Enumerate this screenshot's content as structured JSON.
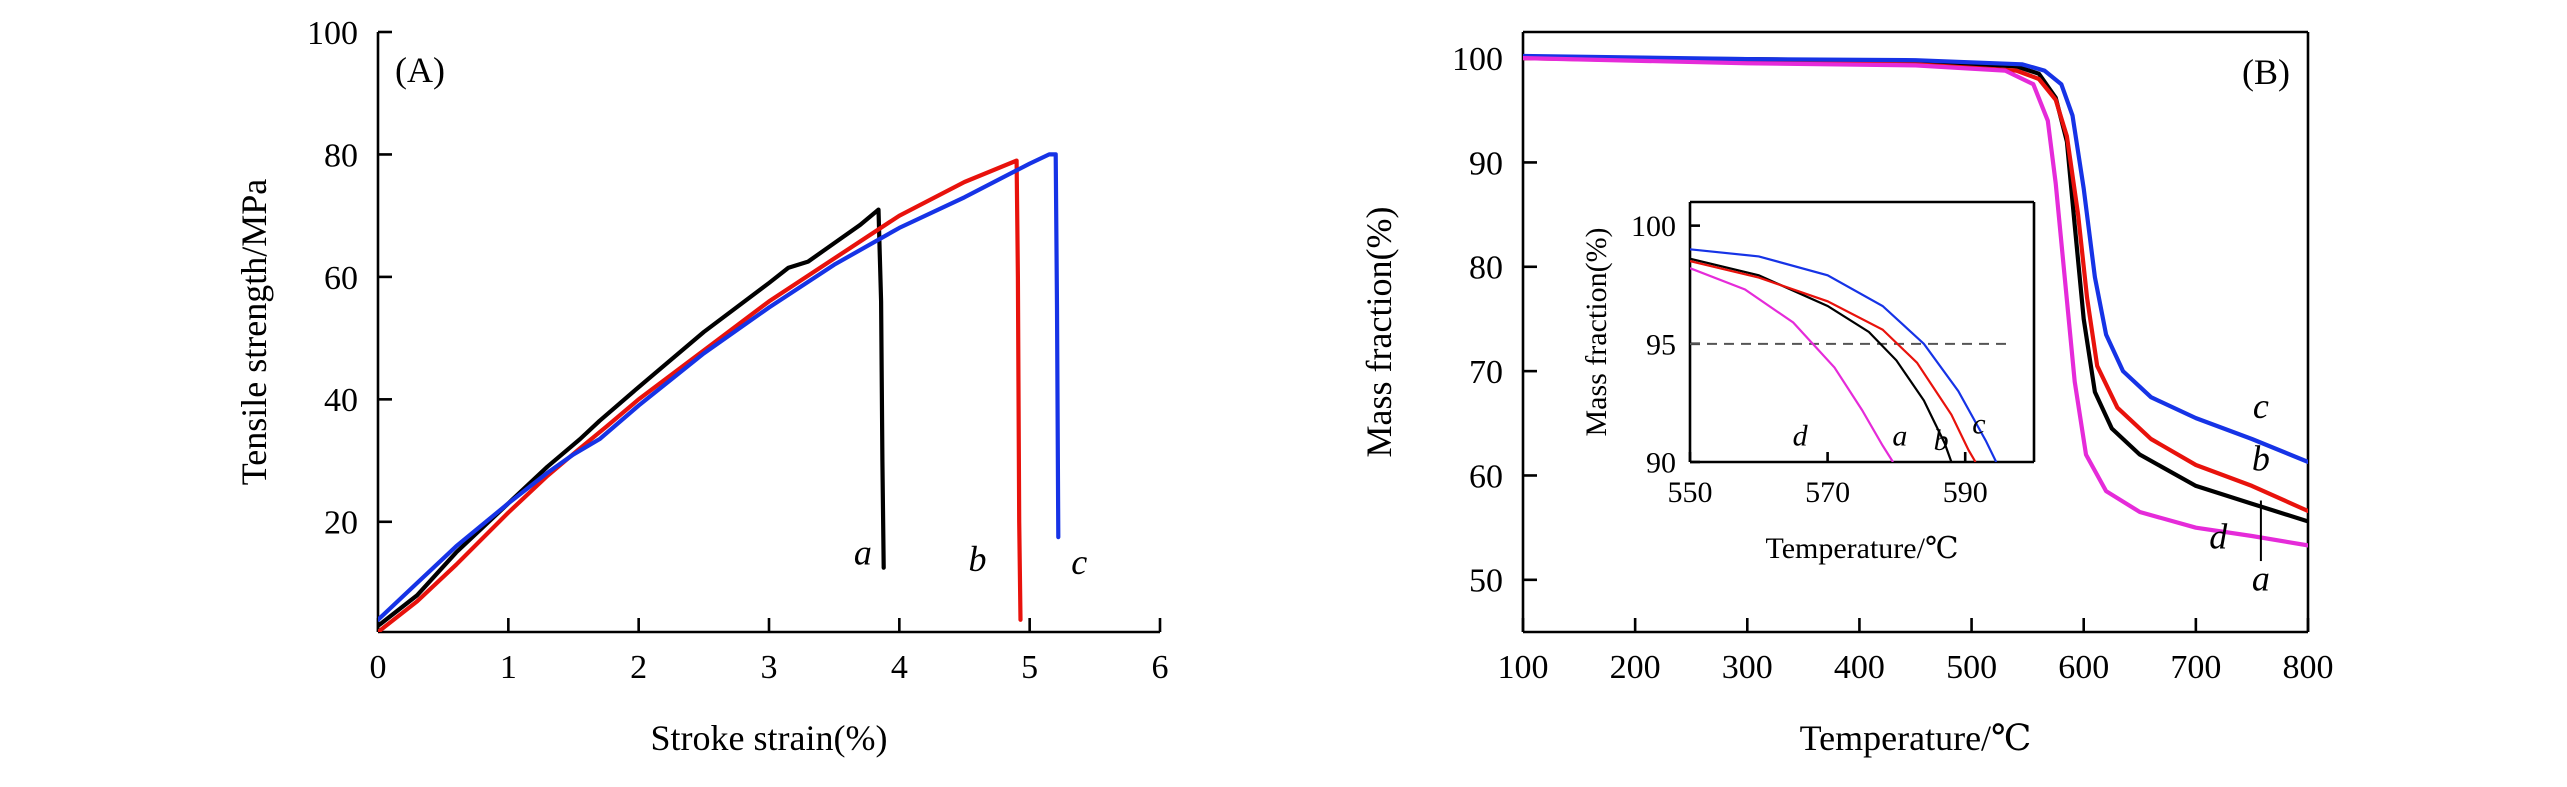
{
  "chart_data": [
    {
      "id": "A",
      "type": "line",
      "panel_label": "(A)",
      "xlabel": "Stroke strain(%)",
      "ylabel": "Tensile strength/MPa",
      "xlim": [
        0,
        6
      ],
      "ylim": [
        2,
        100
      ],
      "x_ticks": [
        0,
        1,
        2,
        3,
        4,
        5,
        6
      ],
      "y_ticks": [
        20,
        40,
        60,
        80,
        100
      ],
      "series": [
        {
          "name": "a",
          "color": "#000000",
          "points": [
            [
              0,
              3
            ],
            [
              0.3,
              8
            ],
            [
              0.6,
              15
            ],
            [
              1.0,
              23
            ],
            [
              1.3,
              29
            ],
            [
              1.55,
              33.5
            ],
            [
              1.7,
              36.5
            ],
            [
              2.0,
              42
            ],
            [
              2.5,
              51
            ],
            [
              3.0,
              59
            ],
            [
              3.15,
              61.5
            ],
            [
              3.3,
              62.5
            ],
            [
              3.5,
              65.5
            ],
            [
              3.7,
              68.5
            ],
            [
              3.84,
              71
            ],
            [
              3.86,
              56
            ],
            [
              3.87,
              30
            ],
            [
              3.88,
              12.5
            ]
          ],
          "label": "a",
          "label_pos": [
            3.72,
            13
          ]
        },
        {
          "name": "b",
          "color": "#e8120c",
          "points": [
            [
              0,
              2
            ],
            [
              0.3,
              7
            ],
            [
              0.6,
              13
            ],
            [
              1.0,
              21.5
            ],
            [
              1.3,
              27.5
            ],
            [
              1.55,
              32
            ],
            [
              1.75,
              35.5
            ],
            [
              2.0,
              40
            ],
            [
              2.5,
              48
            ],
            [
              3.0,
              56
            ],
            [
              3.5,
              63
            ],
            [
              4.0,
              70
            ],
            [
              4.5,
              75.5
            ],
            [
              4.9,
              79
            ],
            [
              4.91,
              60
            ],
            [
              4.92,
              20
            ],
            [
              4.93,
              4
            ]
          ],
          "label": "b",
          "label_pos": [
            4.6,
            12
          ]
        },
        {
          "name": "c",
          "color": "#1633e6",
          "points": [
            [
              0,
              4
            ],
            [
              0.3,
              10
            ],
            [
              0.6,
              16
            ],
            [
              1.0,
              23
            ],
            [
              1.3,
              28
            ],
            [
              1.5,
              31
            ],
            [
              1.7,
              33.5
            ],
            [
              2.0,
              39
            ],
            [
              2.5,
              47.5
            ],
            [
              3.0,
              55
            ],
            [
              3.5,
              62
            ],
            [
              4.0,
              68
            ],
            [
              4.5,
              73
            ],
            [
              5.0,
              78.5
            ],
            [
              5.15,
              80
            ],
            [
              5.2,
              80
            ],
            [
              5.21,
              55
            ],
            [
              5.22,
              17.5
            ]
          ],
          "label": "c",
          "label_pos": [
            5.38,
            11.5
          ]
        }
      ]
    },
    {
      "id": "B",
      "type": "line",
      "panel_label": "(B)",
      "xlabel": "Temperature/℃",
      "ylabel": "Mass fraction(%)",
      "xlim": [
        100,
        800
      ],
      "ylim": [
        45,
        102.5
      ],
      "x_ticks": [
        100,
        200,
        300,
        400,
        500,
        600,
        700,
        800
      ],
      "y_ticks": [
        50,
        60,
        70,
        80,
        90,
        100
      ],
      "series": [
        {
          "name": "a",
          "color": "#000000",
          "points": [
            [
              100,
              100
            ],
            [
              300,
              99.9
            ],
            [
              450,
              99.7
            ],
            [
              540,
              99.2
            ],
            [
              560,
              98.5
            ],
            [
              575,
              96.2
            ],
            [
              585,
              92
            ],
            [
              592,
              84
            ],
            [
              600,
              75
            ],
            [
              610,
              68
            ],
            [
              625,
              64.5
            ],
            [
              650,
              62
            ],
            [
              700,
              59
            ],
            [
              750,
              57.3
            ],
            [
              800,
              55.6
            ]
          ],
          "label": "a",
          "label_pos": [
            758,
            49
          ]
        },
        {
          "name": "b",
          "color": "#e8120c",
          "points": [
            [
              100,
              100
            ],
            [
              300,
              99.6
            ],
            [
              450,
              99.4
            ],
            [
              540,
              98.8
            ],
            [
              560,
              98
            ],
            [
              575,
              96
            ],
            [
              585,
              92.5
            ],
            [
              595,
              85
            ],
            [
              603,
              77
            ],
            [
              612,
              70.5
            ],
            [
              630,
              66.5
            ],
            [
              660,
              63.5
            ],
            [
              700,
              61
            ],
            [
              750,
              59
            ],
            [
              800,
              56.6
            ]
          ],
          "label": "b",
          "label_pos": [
            758,
            60.5
          ]
        },
        {
          "name": "c",
          "color": "#1633e6",
          "points": [
            [
              100,
              100.2
            ],
            [
              300,
              99.9
            ],
            [
              450,
              99.8
            ],
            [
              545,
              99.4
            ],
            [
              565,
              98.8
            ],
            [
              580,
              97.5
            ],
            [
              590,
              94.5
            ],
            [
              600,
              87.5
            ],
            [
              610,
              79
            ],
            [
              620,
              73.5
            ],
            [
              635,
              70
            ],
            [
              660,
              67.5
            ],
            [
              700,
              65.5
            ],
            [
              750,
              63.5
            ],
            [
              800,
              61.3
            ]
          ],
          "label": "c",
          "label_pos": [
            758,
            65.5
          ]
        },
        {
          "name": "d",
          "color": "#e52bd9",
          "points": [
            [
              100,
              100
            ],
            [
              300,
              99.5
            ],
            [
              450,
              99.3
            ],
            [
              530,
              98.8
            ],
            [
              555,
              97.5
            ],
            [
              568,
              94
            ],
            [
              575,
              88
            ],
            [
              583,
              79
            ],
            [
              592,
              69
            ],
            [
              602,
              62
            ],
            [
              620,
              58.5
            ],
            [
              650,
              56.5
            ],
            [
              700,
              55
            ],
            [
              750,
              54.2
            ],
            [
              800,
              53.3
            ]
          ],
          "label": "d",
          "label_pos": [
            720,
            53
          ]
        }
      ],
      "inset": {
        "xlabel": "Temperature/℃",
        "ylabel": "Mass fraction(%)",
        "xlim": [
          550,
          600
        ],
        "ylim": [
          90,
          101
        ],
        "x_ticks": [
          550,
          570,
          590
        ],
        "y_ticks": [
          90,
          95,
          100
        ],
        "reference_line": 95,
        "series": [
          {
            "name": "a",
            "color": "#000000",
            "points": [
              [
                550,
                98.6
              ],
              [
                560,
                97.9
              ],
              [
                570,
                96.6
              ],
              [
                576,
                95.5
              ],
              [
                580,
                94.3
              ],
              [
                584,
                92.6
              ],
              [
                587,
                90.8
              ],
              [
                588,
                90
              ]
            ],
            "label": "a",
            "label_pos": [
              580.5,
              90.7
            ]
          },
          {
            "name": "b",
            "color": "#e8120c",
            "points": [
              [
                550,
                98.5
              ],
              [
                560,
                97.8
              ],
              [
                570,
                96.8
              ],
              [
                578,
                95.6
              ],
              [
                583,
                94.2
              ],
              [
                588,
                92
              ],
              [
                590.5,
                90.5
              ],
              [
                591.5,
                90
              ]
            ],
            "label": "b",
            "label_pos": [
              586.5,
              90.5
            ]
          },
          {
            "name": "c",
            "color": "#1633e6",
            "points": [
              [
                550,
                99
              ],
              [
                560,
                98.7
              ],
              [
                570,
                97.9
              ],
              [
                578,
                96.6
              ],
              [
                584,
                95
              ],
              [
                589,
                93
              ],
              [
                593,
                90.9
              ],
              [
                594.5,
                90
              ]
            ],
            "label": "c",
            "label_pos": [
              592,
              91.2
            ]
          },
          {
            "name": "d",
            "color": "#e52bd9",
            "points": [
              [
                550,
                98.2
              ],
              [
                558,
                97.3
              ],
              [
                565,
                95.9
              ],
              [
                571,
                94
              ],
              [
                575,
                92.2
              ],
              [
                578,
                90.7
              ],
              [
                579.5,
                90
              ]
            ],
            "label": "d",
            "label_pos": [
              566,
              90.7
            ]
          }
        ]
      }
    }
  ]
}
